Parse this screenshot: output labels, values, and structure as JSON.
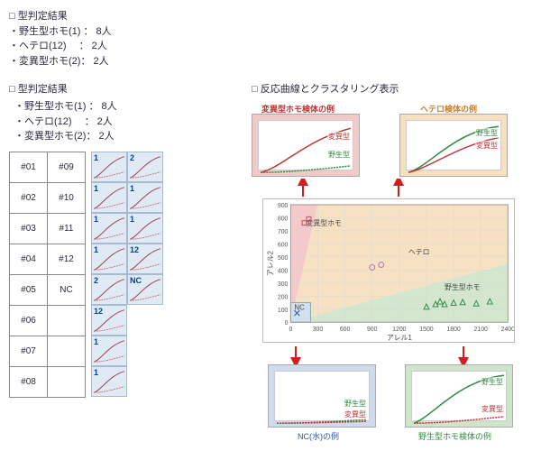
{
  "top": {
    "heading": "□ 型判定結果",
    "lines": [
      "・野生型ホモ(1) ： 8人",
      "・ヘテロ(12)　 ： 2人",
      "・変異型ホモ(2)： 2人"
    ]
  },
  "left": {
    "heading": "□ 型判定結果",
    "lines": [
      "・野生型ホモ(1) ： 8人",
      "・ヘテロ(12)　 ： 2人",
      "・変異型ホモ(2)： 2人"
    ],
    "sample_table": {
      "rows": [
        [
          "#01",
          "#09"
        ],
        [
          "#02",
          "#10"
        ],
        [
          "#03",
          "#11"
        ],
        [
          "#04",
          "#12"
        ],
        [
          "#05",
          "NC"
        ],
        [
          "#06",
          ""
        ],
        [
          "#07",
          ""
        ],
        [
          "#08",
          ""
        ]
      ]
    },
    "curve_labels": {
      "r0c0": "1",
      "r0c1": "2",
      "r1c0": "1",
      "r1c1": "1",
      "r2c0": "1",
      "r2c1": "1",
      "r3c0": "1",
      "r3c1": "12",
      "r4c0": "2",
      "r4c1": "NC",
      "r5c0": "12",
      "r5c1": "",
      "r6c0": "1",
      "r6c1": "",
      "r7c0": "1",
      "r7c1": ""
    },
    "curve_color_top": "#a04050",
    "curve_color_bot": "#c87080"
  },
  "right": {
    "heading": "□ 反応曲線とクラスタリング表示",
    "panel_bg": {
      "mutant": "#f1c9c9",
      "hetero": "#f6e0c0",
      "nc": "#cddcec",
      "wt": "#cfe5cb"
    },
    "panel_titles": {
      "mutant": "変異型ホモ検体の例",
      "hetero": "ヘテロ検体の例",
      "nc": "NC(水)の例",
      "wt": "野生型ホモ検体の例"
    },
    "panel_title_colors": {
      "mutant": "#c03030",
      "hetero": "#d07a20",
      "nc": "#2a55a0",
      "wt": "#2d8a3d"
    },
    "legend_labels": {
      "wt": "野生型",
      "mut": "変異型"
    },
    "legend_colors": {
      "wt": "#2d8a3d",
      "mut": "#c03030"
    },
    "scatter": {
      "xlabel": "アレル1",
      "ylabel": "アレル2",
      "xlim": [
        0,
        2400
      ],
      "ylim": [
        0,
        900
      ],
      "xtick_step": 300,
      "ytick_step": 100,
      "grid_color": "#d8d8d8",
      "region_colors": {
        "mutant": "#f3c9c9",
        "hetero": "#f7e1c3",
        "wt": "#d2e7ce",
        "nc": "#d3e0ee"
      },
      "region_labels": {
        "mutant": "変異型ホモ",
        "hetero": "ヘテロ",
        "wt": "野生型ホモ",
        "nc": "NC"
      },
      "region_label_colors": {
        "mutant": "#c03030",
        "hetero": "#d07a20",
        "wt": "#2d8a3d",
        "nc": "#2a55a0"
      },
      "points": {
        "wt": [
          [
            1500,
            120
          ],
          [
            1650,
            160
          ],
          [
            1800,
            150
          ],
          [
            1900,
            155
          ],
          [
            2050,
            145
          ],
          [
            2200,
            160
          ],
          [
            1700,
            140
          ],
          [
            1600,
            140
          ]
        ],
        "hetero": [
          [
            900,
            420
          ],
          [
            1000,
            440
          ]
        ],
        "mutant": [
          [
            150,
            760
          ],
          [
            200,
            790
          ]
        ],
        "nc": [
          [
            70,
            70
          ]
        ]
      },
      "marker_colors": {
        "wt": "#358a4b",
        "hetero": "#b070c0",
        "mutant": "#c05050",
        "nc": "#3a6ab0"
      }
    },
    "arrow_color": "#d02020"
  }
}
